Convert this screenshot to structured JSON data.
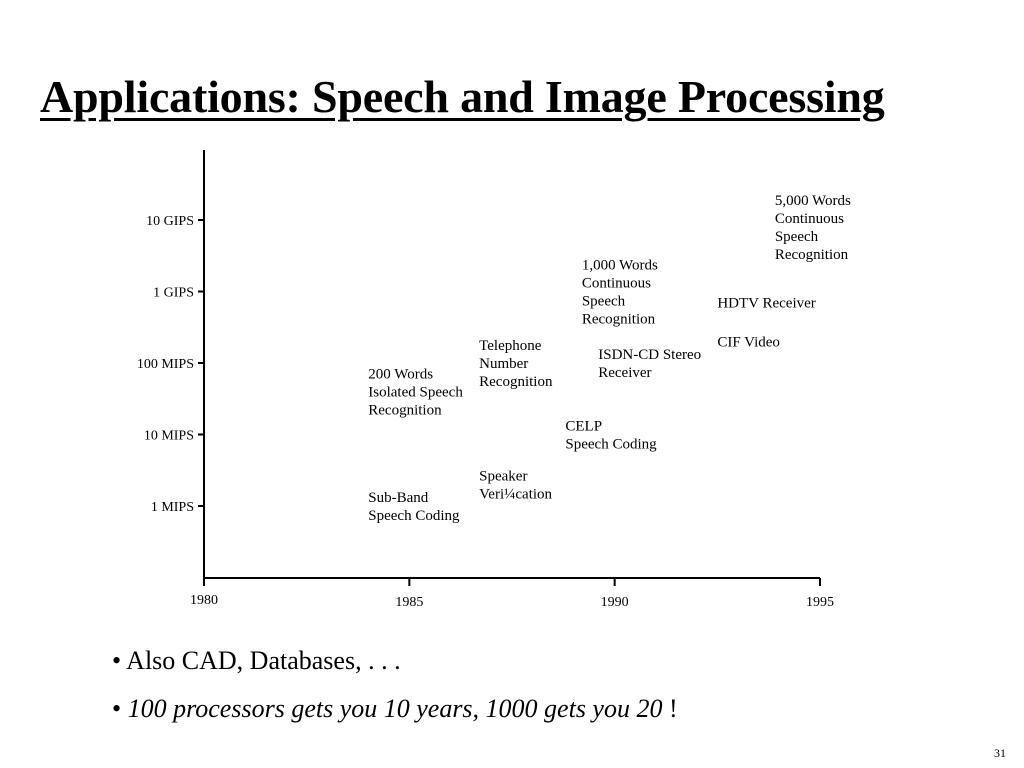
{
  "slide": {
    "title": "Applications: Speech and Image Processing",
    "bullets": [
      {
        "text": "• Also CAD, Databases, . . ."
      },
      {
        "text_italic": "100 processors gets you 10 years, 1000 gets you 20",
        "suffix": " !"
      }
    ],
    "page_number": "31"
  },
  "chart_data": {
    "type": "scatter",
    "title": "",
    "xlabel": "",
    "ylabel": "",
    "x_ticks": [
      "1980",
      "1985",
      "1990",
      "1995"
    ],
    "y_ticks": [
      "1 MIPS",
      "10 MIPS",
      "100 MIPS",
      "1 GIPS",
      "10 GIPS"
    ],
    "y_scale": "log",
    "xlim": [
      1980,
      1995
    ],
    "grid": false,
    "annotations": [
      {
        "name": "sub-band",
        "lines": [
          "Sub-Band",
          "Speech Coding"
        ],
        "x": 1984,
        "y_mips": 1
      },
      {
        "name": "200-words",
        "lines": [
          "200 Words",
          "Isolated Speech",
          "Recognition"
        ],
        "x": 1984,
        "y_mips": 40
      },
      {
        "name": "speaker-ver",
        "lines": [
          "Speaker",
          "Veri¼cation"
        ],
        "x": 1986.7,
        "y_mips": 2
      },
      {
        "name": "telephone",
        "lines": [
          "Telephone",
          "Number",
          "Recognition"
        ],
        "x": 1986.7,
        "y_mips": 100
      },
      {
        "name": "celp",
        "lines": [
          "CELP",
          "Speech Coding"
        ],
        "x": 1988.8,
        "y_mips": 10
      },
      {
        "name": "1000-words",
        "lines": [
          "1,000 Words",
          "Continuous",
          "Speech",
          "Recognition"
        ],
        "x": 1989.2,
        "y_mips": 1000
      },
      {
        "name": "isdn",
        "lines": [
          "ISDN-CD Stereo",
          "Receiver"
        ],
        "x": 1989.6,
        "y_mips": 100
      },
      {
        "name": "hdtv",
        "lines": [
          "HDTV Receiver"
        ],
        "x": 1992.5,
        "y_mips": 700
      },
      {
        "name": "cif",
        "lines": [
          "CIF Video"
        ],
        "x": 1992.5,
        "y_mips": 200
      },
      {
        "name": "5000-words",
        "lines": [
          "5,000 Words",
          "Continuous",
          "Speech",
          "Recognition"
        ],
        "x": 1993.9,
        "y_mips": 8000
      }
    ]
  }
}
